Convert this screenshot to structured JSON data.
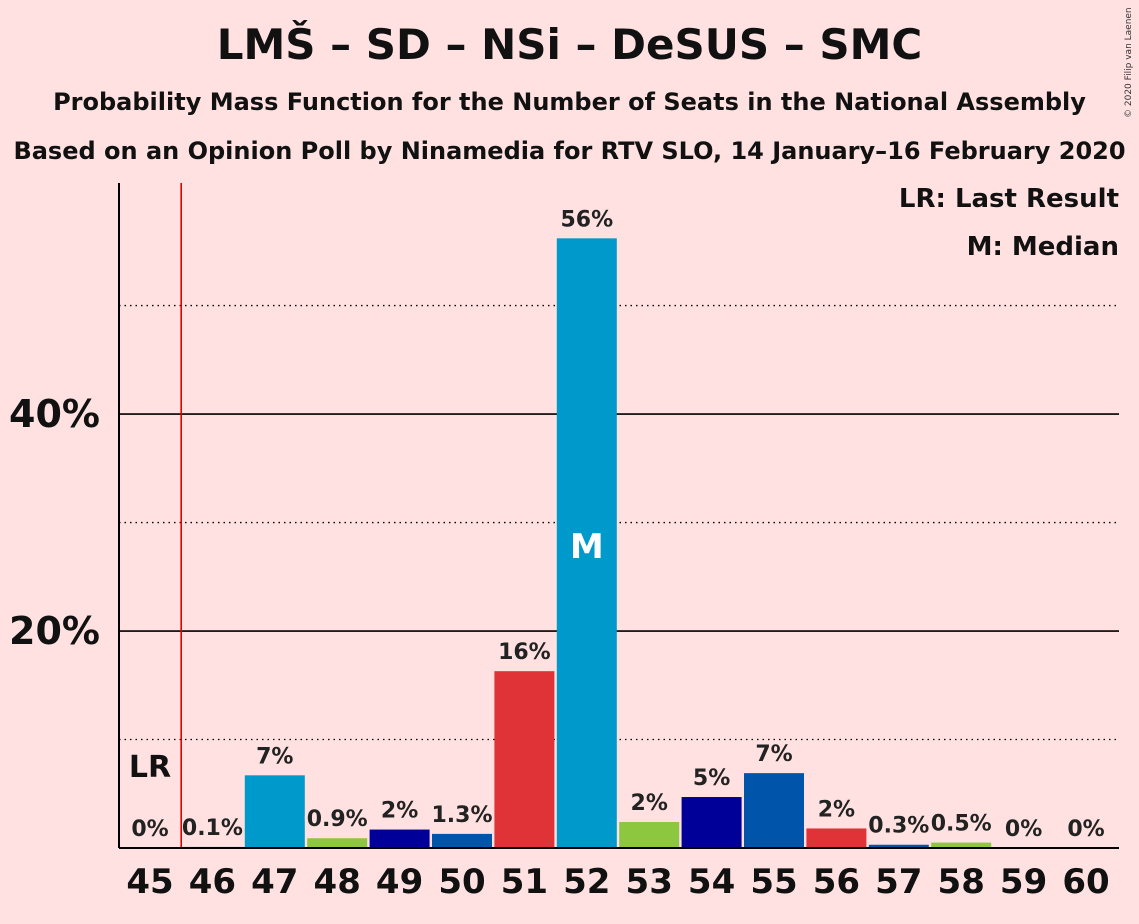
{
  "chart_data": {
    "type": "bar",
    "title": "LMŠ – SD – NSi – DeSUS – SMC",
    "subtitle": "Probability Mass Function for the Number of Seats in the National Assembly",
    "subtitle2": "Based on an Opinion Poll by Ninamedia for RTV SLO, 14 January–16 February 2020",
    "copyright": "© 2020 Filip van Laenen",
    "categories": [
      "45",
      "46",
      "47",
      "48",
      "49",
      "50",
      "51",
      "52",
      "53",
      "54",
      "55",
      "56",
      "57",
      "58",
      "59",
      "60"
    ],
    "values": [
      0,
      0.1,
      6.7,
      0.9,
      1.7,
      1.3,
      16.3,
      56.2,
      2.4,
      4.7,
      6.9,
      1.8,
      0.3,
      0.5,
      0,
      0
    ],
    "labels": [
      "0%",
      "0.1%",
      "7%",
      "0.9%",
      "2%",
      "1.3%",
      "16%",
      "56%",
      "2%",
      "5%",
      "7%",
      "2%",
      "0.3%",
      "0.5%",
      "0%",
      "0%"
    ],
    "colors": [
      "#0099cc",
      "#0099cc",
      "#0099cc",
      "#8dc63f",
      "#000099",
      "#0055aa",
      "#e03337",
      "#0099cc",
      "#8dc63f",
      "#000099",
      "#0055aa",
      "#e03337",
      "#0055aa",
      "#8dc63f",
      "#0099cc",
      "#0099cc"
    ],
    "ylim": [
      0,
      61.3
    ],
    "y_ticks": [
      20,
      40
    ],
    "y_tick_labels": [
      "20%",
      "40%"
    ],
    "y_minor_ticks": [
      10,
      30,
      50
    ],
    "last_result_seat": "45",
    "last_result_label": "LR",
    "median_seat": "52",
    "median_label": "M",
    "legend": {
      "lr": "LR: Last Result",
      "m": "M: Median"
    }
  }
}
